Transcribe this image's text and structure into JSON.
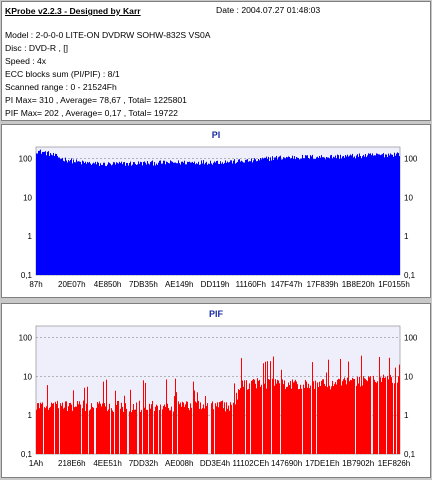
{
  "header": {
    "title": "KProbe v2.2.3 - Designed by Karr",
    "date": "Date : 2004.07.27 01:48:03",
    "lines": [
      "Model : 2-0-0-0 LITE-ON DVDRW SOHW-832S  VS0A",
      "Disc : DVD-R ,  []",
      "Speed : 4x",
      "ECC blocks sum (PI/PIF) : 8/1",
      "Scanned range : 0 - 21524Fh",
      "PI Max= 310 , Average= 78,67 , Total= 1225801",
      "PIF Max= 202 , Average= 0,17 , Total= 19722"
    ]
  },
  "colors": {
    "pi": "#0000ff",
    "pif": "#ff0000",
    "plot_bg": "#efeffb",
    "title": "#1a2aa0"
  },
  "chart_data": [
    {
      "type": "area",
      "title": "PI",
      "ylog": true,
      "ylim": [
        0.1,
        200
      ],
      "y_ticks": [
        "100",
        "10",
        "1",
        "0,1"
      ],
      "x_ticks": [
        "87h",
        "20E07h",
        "4E850h",
        "7DB35h",
        "AE149h",
        "DD119h",
        "11160Fh",
        "147F47h",
        "17F839h",
        "1B8E20h",
        "1F0155h"
      ],
      "grid": true,
      "profile": [
        [
          0,
          160
        ],
        [
          0.03,
          140
        ],
        [
          0.07,
          100
        ],
        [
          0.12,
          80
        ],
        [
          0.18,
          72
        ],
        [
          0.25,
          75
        ],
        [
          0.32,
          78
        ],
        [
          0.4,
          80
        ],
        [
          0.48,
          82
        ],
        [
          0.55,
          85
        ],
        [
          0.6,
          90
        ],
        [
          0.65,
          105
        ],
        [
          0.72,
          110
        ],
        [
          0.8,
          112
        ],
        [
          0.88,
          118
        ],
        [
          0.95,
          125
        ],
        [
          1.0,
          135
        ]
      ]
    },
    {
      "type": "area",
      "title": "PIF",
      "ylog": true,
      "ylim": [
        0.1,
        200
      ],
      "y_ticks": [
        "100",
        "10",
        "1",
        "0,1"
      ],
      "x_ticks": [
        "1Ah",
        "218E6h",
        "4EE51h",
        "7DD32h",
        "AE008h",
        "DD3E4h",
        "11102CEh",
        "147690h",
        "17DE1Eh",
        "1B7902h",
        "1EF826h"
      ],
      "grid": true,
      "profile": [
        [
          0,
          2
        ],
        [
          0.1,
          2
        ],
        [
          0.2,
          2
        ],
        [
          0.3,
          2
        ],
        [
          0.4,
          2
        ],
        [
          0.5,
          2
        ],
        [
          0.55,
          2
        ],
        [
          0.56,
          7
        ],
        [
          0.62,
          8
        ],
        [
          0.7,
          7
        ],
        [
          0.78,
          7
        ],
        [
          0.86,
          8
        ],
        [
          0.93,
          9
        ],
        [
          1.0,
          10
        ]
      ]
    }
  ]
}
